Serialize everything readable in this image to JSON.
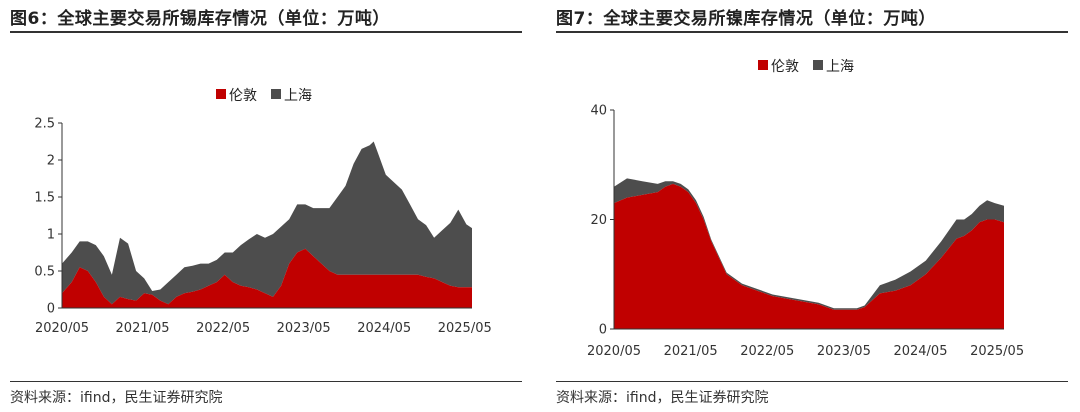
{
  "chart_data": [
    {
      "id": "fig6",
      "type": "area",
      "stacked": true,
      "title": "图6：全球主要交易所锡库存情况（单位：万吨）",
      "source": "资料来源：ifind，民生证券研究院",
      "legend": [
        {
          "name": "伦敦",
          "color": "#c00000"
        },
        {
          "name": "上海",
          "color": "#4d4d4d"
        }
      ],
      "x_tick_labels": [
        "2020/05",
        "2021/05",
        "2022/05",
        "2023/05",
        "2024/05",
        "2025/05"
      ],
      "x_range": [
        2020.33,
        2025.42
      ],
      "ylim": [
        0,
        2.5
      ],
      "y_ticks": [
        "0",
        "0.5",
        "1",
        "1.5",
        "2",
        "2.5"
      ],
      "x": [
        2020.33,
        2020.45,
        2020.55,
        2020.65,
        2020.75,
        2020.85,
        2020.95,
        2021.05,
        2021.15,
        2021.25,
        2021.35,
        2021.45,
        2021.55,
        2021.65,
        2021.75,
        2021.85,
        2021.95,
        2022.05,
        2022.15,
        2022.25,
        2022.35,
        2022.45,
        2022.55,
        2022.65,
        2022.75,
        2022.85,
        2022.95,
        2023.05,
        2023.15,
        2023.25,
        2023.35,
        2023.45,
        2023.55,
        2023.65,
        2023.75,
        2023.85,
        2023.95,
        2024.05,
        2024.15,
        2024.2,
        2024.25,
        2024.35,
        2024.45,
        2024.55,
        2024.65,
        2024.75,
        2024.85,
        2024.95,
        2025.05,
        2025.15,
        2025.25,
        2025.35,
        2025.42
      ],
      "series": [
        {
          "name": "伦敦",
          "values": [
            0.2,
            0.35,
            0.55,
            0.5,
            0.35,
            0.15,
            0.05,
            0.15,
            0.12,
            0.1,
            0.2,
            0.18,
            0.1,
            0.05,
            0.15,
            0.2,
            0.22,
            0.25,
            0.3,
            0.35,
            0.45,
            0.35,
            0.3,
            0.28,
            0.25,
            0.2,
            0.15,
            0.3,
            0.6,
            0.75,
            0.8,
            0.7,
            0.6,
            0.5,
            0.45,
            0.45,
            0.45,
            0.45,
            0.45,
            0.45,
            0.45,
            0.45,
            0.45,
            0.45,
            0.45,
            0.45,
            0.42,
            0.4,
            0.35,
            0.3,
            0.28,
            0.28,
            0.28
          ]
        },
        {
          "name": "上海",
          "values": [
            0.4,
            0.4,
            0.35,
            0.4,
            0.5,
            0.55,
            0.4,
            0.8,
            0.75,
            0.4,
            0.2,
            0.05,
            0.15,
            0.3,
            0.3,
            0.35,
            0.35,
            0.35,
            0.3,
            0.3,
            0.3,
            0.4,
            0.55,
            0.65,
            0.75,
            0.75,
            0.85,
            0.8,
            0.6,
            0.65,
            0.6,
            0.65,
            0.75,
            0.85,
            1.05,
            1.2,
            1.5,
            1.7,
            1.75,
            1.8,
            1.65,
            1.35,
            1.25,
            1.15,
            0.95,
            0.75,
            0.7,
            0.55,
            0.7,
            0.85,
            1.05,
            0.85,
            0.8
          ]
        }
      ]
    },
    {
      "id": "fig7",
      "type": "area",
      "stacked": true,
      "title": "图7：全球主要交易所镍库存情况（单位：万吨）",
      "source": "资料来源：ifind，民生证券研究院",
      "legend": [
        {
          "name": "伦敦",
          "color": "#c00000"
        },
        {
          "name": "上海",
          "color": "#4d4d4d"
        }
      ],
      "x_tick_labels": [
        "2020/05",
        "2021/05",
        "2022/05",
        "2023/05",
        "2024/05",
        "2025/05"
      ],
      "x_range": [
        2020.33,
        2025.42
      ],
      "ylim": [
        0,
        40
      ],
      "y_ticks": [
        "0",
        "20",
        "40"
      ],
      "x": [
        2020.33,
        2020.5,
        2020.7,
        2020.9,
        2021.0,
        2021.1,
        2021.2,
        2021.3,
        2021.4,
        2021.5,
        2021.6,
        2021.8,
        2022.0,
        2022.2,
        2022.4,
        2022.6,
        2022.8,
        2023.0,
        2023.2,
        2023.4,
        2023.5,
        2023.6,
        2023.8,
        2024.0,
        2024.2,
        2024.4,
        2024.6,
        2024.8,
        2024.9,
        2025.0,
        2025.1,
        2025.2,
        2025.3,
        2025.42
      ],
      "series": [
        {
          "name": "伦敦",
          "values": [
            23,
            24,
            24.5,
            25,
            26,
            26.5,
            26,
            25,
            23,
            20,
            16,
            10,
            8,
            7,
            6,
            5.5,
            5,
            4.5,
            3.5,
            3.5,
            3.5,
            4,
            6.5,
            7,
            8,
            10,
            13,
            16.5,
            17,
            18,
            19.5,
            20,
            20,
            19.5
          ]
        },
        {
          "name": "上海",
          "values": [
            3,
            3.5,
            2.5,
            1.5,
            1,
            0.5,
            0.5,
            0.5,
            0.5,
            0.5,
            0.3,
            0.3,
            0.3,
            0.3,
            0.3,
            0.3,
            0.3,
            0.3,
            0.3,
            0.3,
            0.3,
            0.3,
            1.5,
            2,
            2.5,
            2.5,
            3,
            3.5,
            3,
            3,
            3,
            3.5,
            3,
            3
          ]
        }
      ]
    }
  ]
}
